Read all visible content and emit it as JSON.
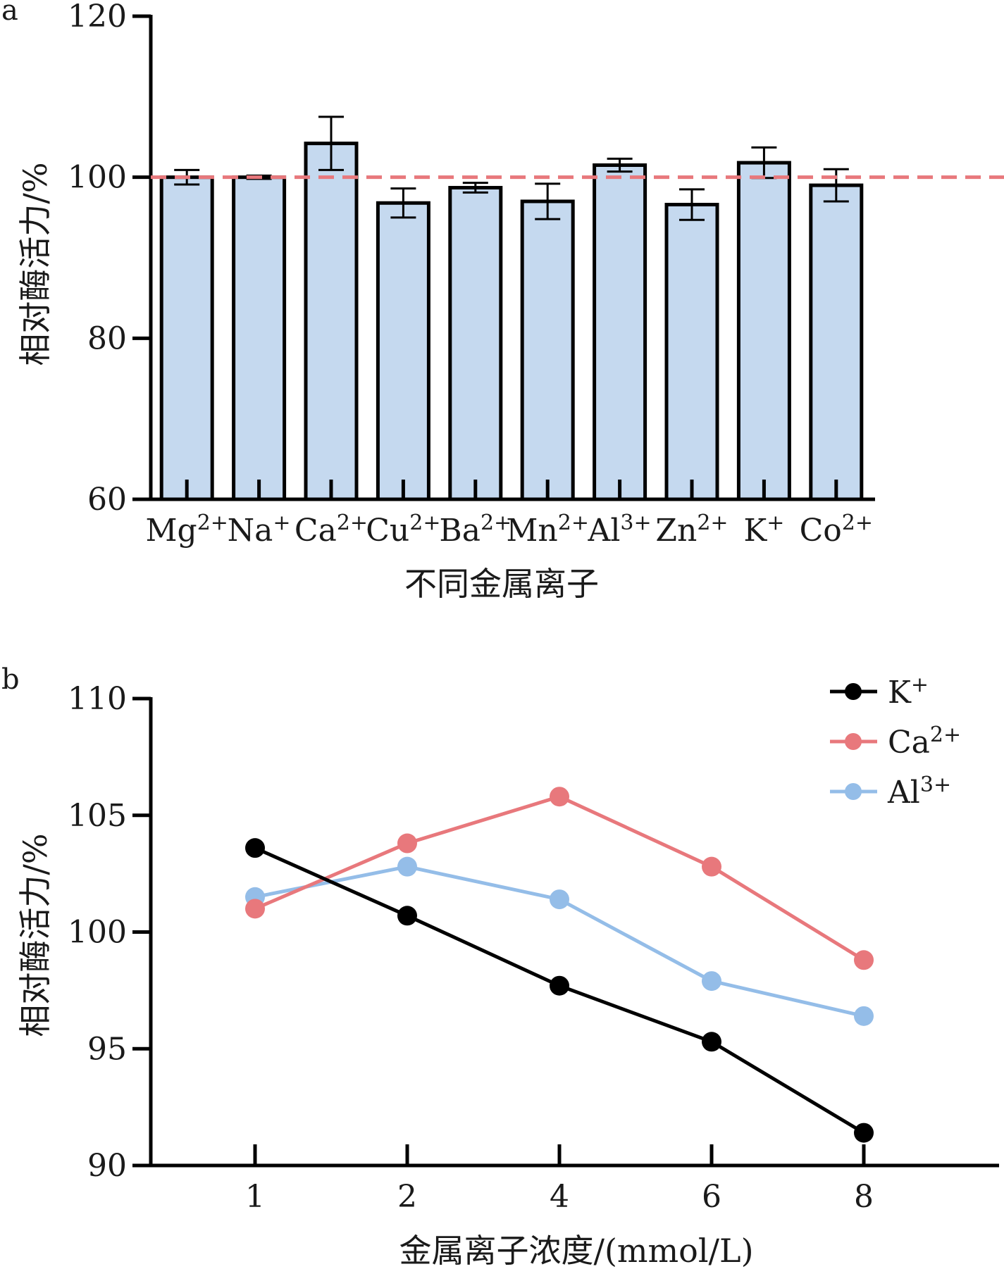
{
  "panels": [
    {
      "label": "a"
    },
    {
      "label": "b"
    }
  ],
  "chart_data": [
    {
      "type": "bar",
      "panel": "a",
      "categories": [
        "Mg²⁺",
        "Na⁺",
        "Ca²⁺",
        "Cu²⁺",
        "Ba²⁺",
        "Mn²⁺",
        "Al³⁺",
        "Zn²⁺",
        "K⁺",
        "Co²⁺"
      ],
      "values": [
        100.0,
        100.0,
        104.2,
        96.8,
        98.7,
        97.0,
        101.5,
        96.6,
        101.8,
        99.0
      ],
      "errors": [
        0.9,
        0.2,
        3.3,
        1.8,
        0.6,
        2.2,
        0.8,
        1.9,
        1.9,
        2.0
      ],
      "reference_line": 100,
      "xlabel": "不同金属离子",
      "ylabel": "相对酶活力/%",
      "ylim": [
        60,
        120
      ],
      "yticks": [
        60,
        80,
        100,
        120
      ],
      "bar_color": "#c5d9ef",
      "reference_color": "#e8787c"
    },
    {
      "type": "line",
      "panel": "b",
      "x": [
        "1",
        "2",
        "4",
        "6",
        "8"
      ],
      "series": [
        {
          "name": "K⁺",
          "values": [
            103.6,
            100.7,
            97.7,
            95.3,
            91.4
          ],
          "color": "#000000"
        },
        {
          "name": "Ca²⁺",
          "values": [
            101.0,
            103.8,
            105.8,
            102.8,
            98.8
          ],
          "color": "#e8787c"
        },
        {
          "name": "Al³⁺",
          "values": [
            101.5,
            102.8,
            101.4,
            97.9,
            96.4
          ],
          "color": "#94bde8"
        }
      ],
      "xlabel": "金属离子浓度/(mmol/L)",
      "ylabel": "相对酶活力/%",
      "ylim": [
        90,
        110
      ],
      "yticks": [
        90,
        95,
        100,
        105,
        110
      ],
      "legend_position": "top-right"
    }
  ]
}
